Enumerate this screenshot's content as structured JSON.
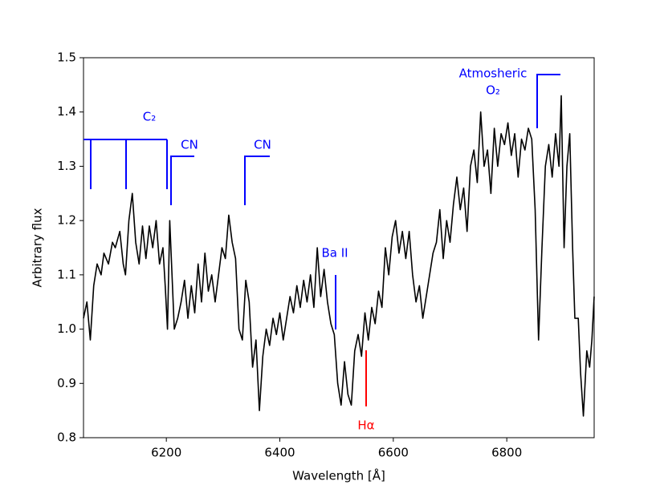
{
  "chart_data": {
    "type": "line",
    "xlabel": "Wavelength [Å]",
    "ylabel": "Arbitrary flux",
    "xlim": [
      6054,
      6954
    ],
    "ylim": [
      0.8,
      1.5
    ],
    "xticks": [
      6200,
      6400,
      6600,
      6800
    ],
    "yticks": [
      0.8,
      0.9,
      {
        "value": 1,
        "label": "1.0"
      },
      1.1,
      1.2,
      1.3,
      1.4,
      1.5
    ],
    "grid": false,
    "annotations": [
      "C₂",
      "CN",
      "CN",
      "Ba II",
      "Hα",
      "Atmosheric",
      "O₂"
    ],
    "series": [
      {
        "color": "#000000",
        "x": [
          6054,
          6060,
          6066,
          6072,
          6078,
          6085,
          6090,
          6098,
          6105,
          6110,
          6118,
          6124,
          6128,
          6134,
          6140,
          6146,
          6152,
          6158,
          6164,
          6170,
          6176,
          6182,
          6188,
          6194,
          6198,
          6202,
          6206,
          6210,
          6214,
          6220,
          6226,
          6232,
          6238,
          6244,
          6250,
          6256,
          6262,
          6268,
          6274,
          6280,
          6286,
          6292,
          6298,
          6304,
          6310,
          6316,
          6322,
          6328,
          6334,
          6340,
          6346,
          6352,
          6358,
          6364,
          6370,
          6376,
          6382,
          6388,
          6394,
          6400,
          6406,
          6412,
          6418,
          6424,
          6430,
          6436,
          6442,
          6448,
          6454,
          6460,
          6466,
          6472,
          6478,
          6484,
          6490,
          6496,
          6502,
          6508,
          6514,
          6520,
          6526,
          6532,
          6538,
          6544,
          6550,
          6556,
          6562,
          6568,
          6574,
          6580,
          6586,
          6592,
          6598,
          6604,
          6610,
          6616,
          6622,
          6628,
          6634,
          6640,
          6646,
          6652,
          6658,
          6664,
          6670,
          6676,
          6682,
          6688,
          6694,
          6700,
          6706,
          6712,
          6718,
          6724,
          6730,
          6736,
          6742,
          6748,
          6754,
          6760,
          6766,
          6772,
          6778,
          6784,
          6790,
          6796,
          6802,
          6808,
          6814,
          6820,
          6826,
          6832,
          6838,
          6844,
          6850,
          6856,
          6862,
          6868,
          6874,
          6880,
          6886,
          6892,
          6896,
          6901,
          6906,
          6911,
          6916,
          6920,
          6926,
          6930,
          6935,
          6941,
          6946,
          6950,
          6954
        ],
        "values": [
          1.02,
          1.05,
          0.98,
          1.08,
          1.12,
          1.1,
          1.14,
          1.12,
          1.16,
          1.15,
          1.18,
          1.12,
          1.1,
          1.2,
          1.25,
          1.16,
          1.12,
          1.19,
          1.13,
          1.19,
          1.15,
          1.2,
          1.12,
          1.15,
          1.08,
          1.0,
          1.2,
          1.1,
          1.0,
          1.02,
          1.05,
          1.09,
          1.02,
          1.08,
          1.03,
          1.12,
          1.05,
          1.14,
          1.07,
          1.1,
          1.05,
          1.1,
          1.15,
          1.13,
          1.21,
          1.16,
          1.13,
          1.0,
          0.98,
          1.09,
          1.05,
          0.93,
          0.98,
          0.85,
          0.95,
          1.0,
          0.97,
          1.02,
          0.99,
          1.03,
          0.98,
          1.02,
          1.06,
          1.03,
          1.08,
          1.04,
          1.09,
          1.05,
          1.1,
          1.04,
          1.15,
          1.06,
          1.11,
          1.05,
          1.01,
          0.99,
          0.9,
          0.86,
          0.94,
          0.88,
          0.86,
          0.96,
          0.99,
          0.95,
          1.03,
          0.98,
          1.04,
          1.01,
          1.07,
          1.04,
          1.15,
          1.1,
          1.17,
          1.2,
          1.14,
          1.18,
          1.13,
          1.18,
          1.1,
          1.05,
          1.08,
          1.02,
          1.06,
          1.1,
          1.14,
          1.16,
          1.22,
          1.13,
          1.2,
          1.16,
          1.23,
          1.28,
          1.22,
          1.26,
          1.18,
          1.3,
          1.33,
          1.27,
          1.4,
          1.3,
          1.33,
          1.25,
          1.37,
          1.3,
          1.36,
          1.34,
          1.38,
          1.32,
          1.36,
          1.28,
          1.35,
          1.33,
          1.37,
          1.35,
          1.22,
          0.98,
          1.15,
          1.3,
          1.34,
          1.28,
          1.36,
          1.3,
          1.43,
          1.15,
          1.3,
          1.36,
          1.15,
          1.02,
          1.02,
          0.92,
          0.84,
          0.96,
          0.93,
          0.98,
          1.06
        ]
      }
    ]
  }
}
